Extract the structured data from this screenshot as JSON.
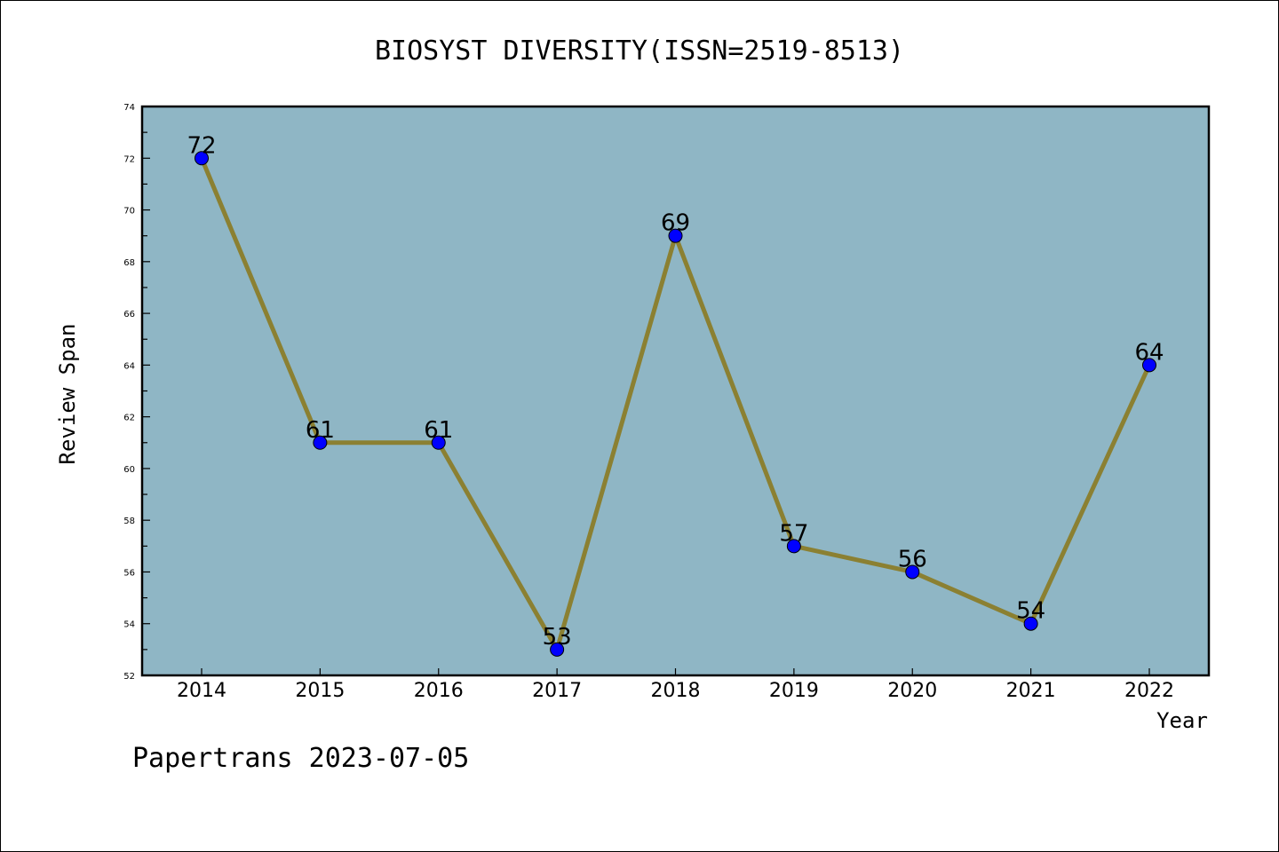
{
  "chart_data": {
    "type": "line",
    "title": "BIOSYST DIVERSITY(ISSN=2519-8513)",
    "xlabel": "Year",
    "ylabel": "Review Span",
    "x": [
      "2014",
      "2015",
      "2016",
      "2017",
      "2018",
      "2019",
      "2020",
      "2021",
      "2022"
    ],
    "values": [
      72,
      61,
      61,
      53,
      69,
      57,
      56,
      54,
      64
    ],
    "data_labels": [
      "72",
      "61",
      "61",
      "53",
      "69",
      "57",
      "56",
      "54",
      "64"
    ],
    "ylim": [
      52,
      74
    ],
    "yticks": [
      "52",
      "54",
      "56",
      "58",
      "60",
      "62",
      "64",
      "66",
      "68",
      "70",
      "72",
      "74"
    ],
    "grid": false,
    "colors": {
      "plot_background": "#8fb6c5",
      "line": "#8b8032",
      "marker": "#0000ff"
    }
  },
  "footer": {
    "text": "Papertrans 2023-07-05"
  }
}
